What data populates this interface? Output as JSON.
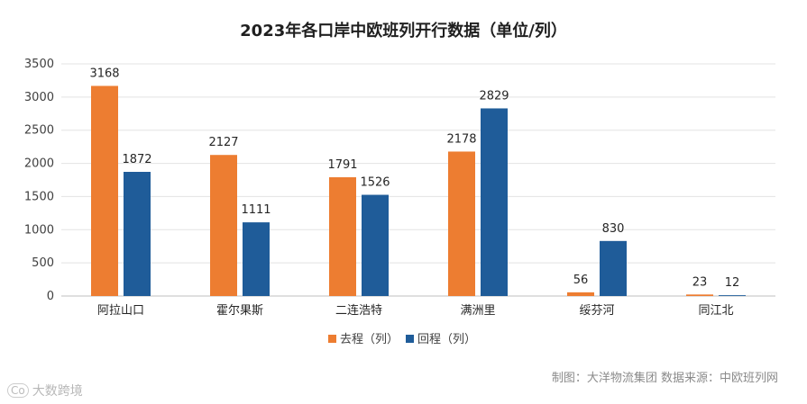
{
  "chart_data": {
    "type": "bar",
    "title": "2023年各口岸中欧班列开行数据（单位/列）",
    "categories": [
      "阿拉山口",
      "霍尔果斯",
      "二连浩特",
      "满洲里",
      "绥芬河",
      "同江北"
    ],
    "series": [
      {
        "name": "去程（列）",
        "color": "#ED7D31",
        "values": [
          3168,
          2127,
          1791,
          2178,
          56,
          23
        ]
      },
      {
        "name": "回程（列）",
        "color": "#1F5C99",
        "values": [
          1872,
          1111,
          1526,
          2829,
          830,
          12
        ]
      }
    ],
    "ylim": [
      0,
      3500
    ],
    "yticks": [
      "0",
      "500",
      "1000",
      "1500",
      "2000",
      "2500",
      "3000",
      "3500"
    ],
    "grid": true,
    "legend": "bottom",
    "source": "制图：大洋物流集团    数据来源：中欧班列网",
    "watermark": "大数跨境"
  }
}
